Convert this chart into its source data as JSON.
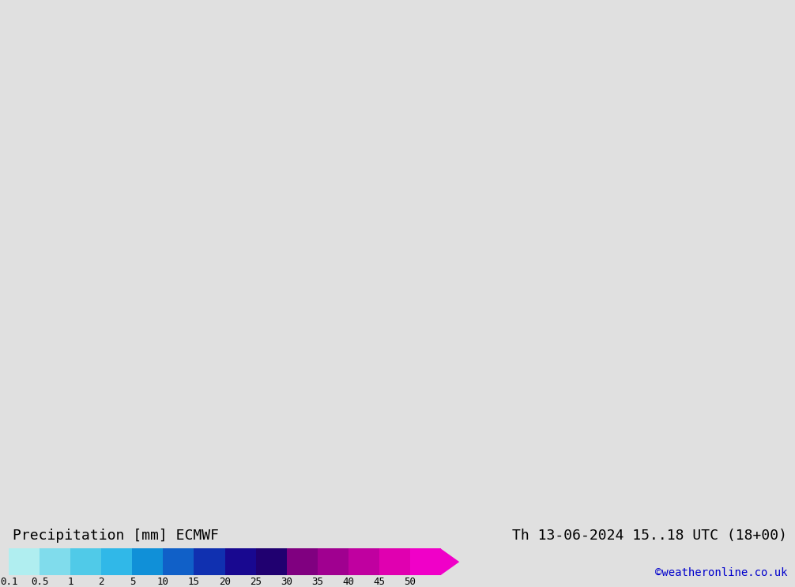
{
  "title_left": "Precipitation [mm] ECMWF",
  "title_right": "Th 13-06-2024 15..18 UTC (18+00)",
  "watermark": "©weatheronline.co.uk",
  "colorbar_values": [
    "0.1",
    "0.5",
    "1",
    "2",
    "5",
    "10",
    "15",
    "20",
    "25",
    "30",
    "35",
    "40",
    "45",
    "50"
  ],
  "colorbar_colors": [
    "#b0eef0",
    "#80dcec",
    "#50cae8",
    "#30b8e8",
    "#1090d8",
    "#1060c8",
    "#1030b0",
    "#180890",
    "#200070",
    "#800080",
    "#a00090",
    "#c000a0",
    "#e000b0",
    "#f000c8"
  ],
  "bg_color": "#e0e0e0",
  "land_color": "#c8ffc8",
  "sea_color": "#e0e0e0",
  "border_color": "#888888",
  "text_color": "#000000",
  "watermark_color": "#0000cc",
  "map_extent": [
    -11.0,
    3.5,
    48.5,
    62.5
  ],
  "title_fontsize": 13,
  "tick_fontsize": 9,
  "watermark_fontsize": 10
}
